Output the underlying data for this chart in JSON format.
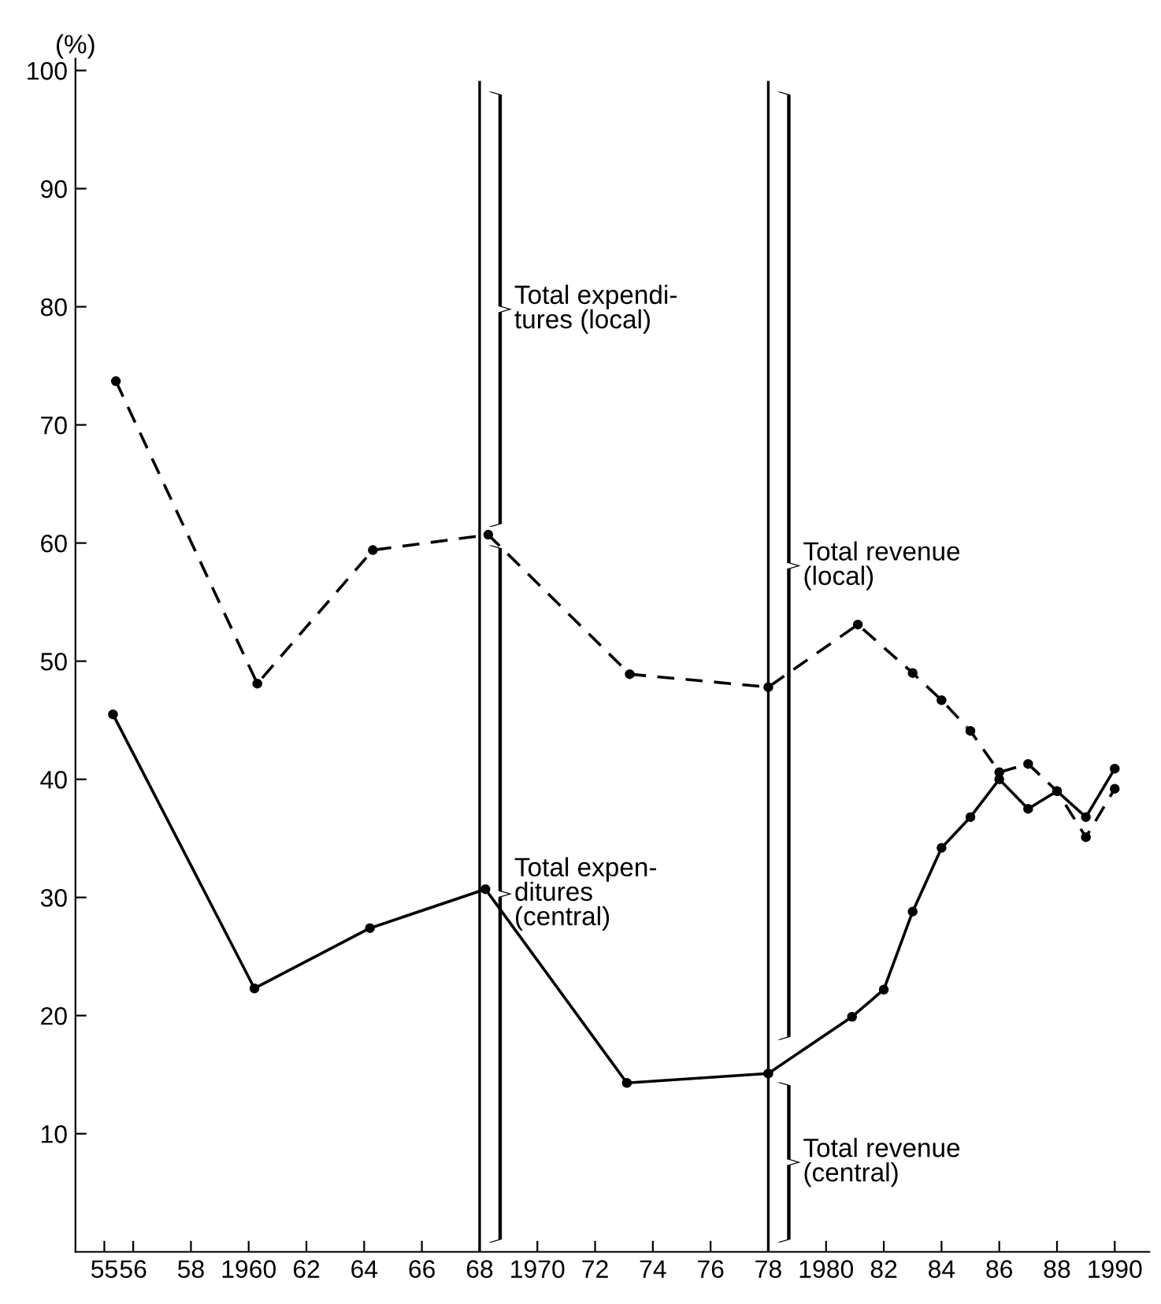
{
  "chart_data": {
    "type": "line",
    "ylabel": "(%)",
    "series": [
      {
        "color": "#000000",
        "line_style": "dashed",
        "marker": "circle",
        "x": [
          1955.4,
          1960.3,
          1964.3,
          1968.3,
          1973.2,
          1978,
          1981.1,
          1983,
          1984,
          1985,
          1986,
          1987,
          1988,
          1989,
          1990
        ],
        "values": [
          73.7,
          48.1,
          59.4,
          60.7,
          48.9,
          47.8,
          53.1,
          49.0,
          46.7,
          44.1,
          40.6,
          41.3,
          39.0,
          35.1,
          39.2
        ]
      },
      {
        "color": "#000000",
        "line_style": "solid",
        "marker": "circle",
        "x": [
          1955.3,
          1960.2,
          1964.2,
          1968.2,
          1973.1,
          1978,
          1980.9,
          1982,
          1983,
          1984,
          1985,
          1986,
          1987,
          1988,
          1989,
          1990
        ],
        "values": [
          45.5,
          22.3,
          27.4,
          30.7,
          14.3,
          15.1,
          19.9,
          22.2,
          28.8,
          34.2,
          36.8,
          40.0,
          37.5,
          39.0,
          36.8,
          40.9
        ]
      }
    ],
    "xlim": [
      1954,
      1991.2
    ],
    "ylim": [
      0,
      101
    ],
    "xticks": [
      {
        "value": 1955,
        "label": "55"
      },
      {
        "value": 1956,
        "label": "56"
      },
      {
        "value": 1958,
        "label": "58"
      },
      1960,
      {
        "value": 1962,
        "label": "62"
      },
      {
        "value": 1964,
        "label": "64"
      },
      {
        "value": 1966,
        "label": "66"
      },
      {
        "value": 1968,
        "label": "68"
      },
      1970,
      {
        "value": 1972,
        "label": "72"
      },
      {
        "value": 1974,
        "label": "74"
      },
      {
        "value": 1976,
        "label": "76"
      },
      {
        "value": 1978,
        "label": "78"
      },
      1980,
      {
        "value": 1982,
        "label": "82"
      },
      {
        "value": 1984,
        "label": "84"
      },
      {
        "value": 1986,
        "label": "86"
      },
      {
        "value": 1988,
        "label": "88"
      },
      1990
    ],
    "yticks": [
      10,
      20,
      30,
      40,
      50,
      60,
      70,
      80,
      90,
      100
    ],
    "ref_lines": [
      {
        "axis": "x",
        "value": 1968,
        "color": "#000000"
      },
      {
        "axis": "x",
        "value": 1978,
        "color": "#000000"
      }
    ],
    "annotations": [
      "Total expendi-\ntures (local)",
      "Total expen-\nditures\n(central)",
      "Total revenue\n(local)",
      "Total revenue\n(central)"
    ],
    "grid": false,
    "legend": false
  }
}
